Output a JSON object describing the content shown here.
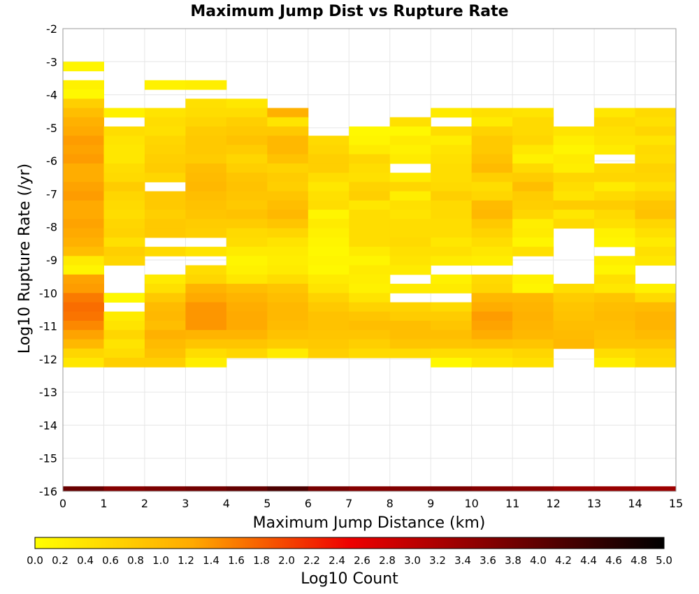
{
  "chart_data": {
    "type": "heatmap",
    "title": "Maximum Jump Dist vs Rupture Rate",
    "xlabel": "Maximum Jump Distance (km)",
    "ylabel": "Log10 Rupture Rate (/yr)",
    "colorbar_label": "Log10 Count",
    "xlim": [
      0,
      15
    ],
    "ylim": [
      -16,
      -2
    ],
    "x_ticks": [
      0,
      1,
      2,
      3,
      4,
      5,
      6,
      7,
      8,
      9,
      10,
      11,
      12,
      13,
      14,
      15
    ],
    "y_ticks": [
      -2,
      -3,
      -4,
      -5,
      -6,
      -7,
      -8,
      -9,
      -10,
      -11,
      -12,
      -13,
      -14,
      -15,
      -16
    ],
    "color_scale": {
      "min": 0.0,
      "max": 5.0,
      "ticks": [
        "0.0",
        "0.2",
        "0.4",
        "0.6",
        "0.8",
        "1.0",
        "1.2",
        "1.4",
        "1.6",
        "1.8",
        "2.0",
        "2.2",
        "2.4",
        "2.6",
        "2.8",
        "3.0",
        "3.2",
        "3.4",
        "3.6",
        "3.8",
        "4.0",
        "4.2",
        "4.4",
        "4.6",
        "4.8",
        "5.0"
      ],
      "stops": [
        {
          "v": 0.0,
          "color": "#ffff00"
        },
        {
          "v": 1.25,
          "color": "#ffaa00"
        },
        {
          "v": 2.5,
          "color": "#ee0000"
        },
        {
          "v": 3.75,
          "color": "#770000"
        },
        {
          "v": 5.0,
          "color": "#000000"
        }
      ]
    },
    "bin_width_x": 1,
    "bin_height_y": 0.28,
    "y_bins_from": -12.4,
    "y_bins_to": -3.0,
    "columns": [
      {
        "x_start": 0,
        "values": [
          0.15,
          null,
          0.2,
          0.1,
          0.7,
          0.95,
          1.15,
          1.25,
          1.35,
          1.3,
          1.35,
          1.2,
          1.2,
          1.3,
          1.35,
          1.25,
          1.25,
          1.3,
          1.25,
          1.15,
          0.95,
          0.3,
          0.15,
          1.3,
          1.35,
          1.6,
          1.7,
          1.65,
          1.5,
          1.3,
          1.05,
          0.6,
          0.35
        ]
      },
      {
        "x_start": 1,
        "values": [
          null,
          null,
          null,
          null,
          null,
          0.2,
          null,
          0.5,
          0.4,
          0.35,
          0.35,
          0.5,
          0.55,
          0.75,
          0.6,
          0.55,
          0.5,
          0.6,
          0.65,
          0.45,
          0.7,
          0.6,
          null,
          null,
          null,
          0.1,
          null,
          0.3,
          0.4,
          0.6,
          0.4,
          0.5,
          0.7
        ]
      },
      {
        "x_start": 2,
        "values": [
          null,
          null,
          0.2,
          null,
          null,
          0.4,
          0.5,
          0.45,
          0.6,
          0.65,
          0.7,
          0.75,
          0.6,
          null,
          0.8,
          0.8,
          0.7,
          0.8,
          0.8,
          null,
          0.55,
          null,
          null,
          0.3,
          0.45,
          0.8,
          1.0,
          1.05,
          0.95,
          1.15,
          1.0,
          0.9,
          0.7
        ]
      },
      {
        "x_start": 3,
        "values": [
          null,
          null,
          0.25,
          null,
          0.45,
          0.5,
          0.6,
          0.75,
          0.8,
          0.8,
          0.75,
          0.95,
          1.0,
          1.05,
          0.95,
          0.9,
          0.85,
          0.75,
          0.7,
          null,
          0.4,
          null,
          0.5,
          0.6,
          1.1,
          1.25,
          1.4,
          1.4,
          1.4,
          1.1,
          0.85,
          0.5,
          0.25
        ]
      },
      {
        "x_start": 4,
        "values": [
          null,
          null,
          null,
          null,
          0.35,
          0.5,
          0.7,
          0.8,
          0.9,
          0.75,
          0.6,
          0.7,
          0.85,
          0.9,
          0.85,
          0.8,
          0.9,
          0.75,
          0.55,
          0.5,
          0.3,
          0.15,
          0.2,
          0.35,
          0.95,
          1.1,
          1.2,
          1.25,
          1.25,
          1.1,
          0.85,
          0.6,
          null
        ]
      },
      {
        "x_start": 5,
        "values": [
          null,
          null,
          null,
          null,
          null,
          1.15,
          0.4,
          0.8,
          1.05,
          1.05,
          0.9,
          0.65,
          0.75,
          0.7,
          0.85,
          0.95,
          1.05,
          0.85,
          0.6,
          0.4,
          0.3,
          0.25,
          0.3,
          0.5,
          0.85,
          0.95,
          1.05,
          1.05,
          1.0,
          0.9,
          0.75,
          0.3,
          null
        ]
      },
      {
        "x_start": 6,
        "values": [
          null,
          null,
          null,
          null,
          null,
          null,
          null,
          null,
          0.55,
          0.6,
          0.7,
          0.7,
          0.5,
          0.35,
          0.45,
          0.5,
          0.15,
          0.3,
          0.2,
          0.15,
          0.1,
          0.15,
          0.1,
          0.3,
          0.4,
          0.65,
          0.8,
          0.9,
          0.9,
          0.85,
          0.8,
          0.7,
          null
        ]
      },
      {
        "x_start": 7,
        "values": [
          null,
          null,
          null,
          null,
          null,
          null,
          null,
          0.1,
          0.15,
          0.3,
          0.6,
          0.5,
          0.45,
          0.65,
          0.7,
          0.35,
          0.5,
          0.5,
          0.5,
          0.5,
          0.3,
          0.15,
          0.3,
          0.25,
          0.2,
          0.4,
          0.65,
          0.85,
          0.95,
          0.85,
          0.7,
          0.55,
          null
        ]
      },
      {
        "x_start": 8,
        "values": [
          null,
          null,
          null,
          null,
          null,
          null,
          0.45,
          0.1,
          0.3,
          0.2,
          0.3,
          null,
          0.3,
          0.6,
          0.25,
          0.45,
          0.4,
          0.5,
          0.5,
          0.55,
          0.45,
          0.4,
          0.3,
          null,
          0.3,
          null,
          0.65,
          0.75,
          0.95,
          0.95,
          0.85,
          0.55,
          null
        ]
      },
      {
        "x_start": 9,
        "values": [
          null,
          null,
          null,
          null,
          null,
          0.3,
          null,
          0.5,
          0.25,
          0.4,
          0.45,
          0.5,
          0.5,
          0.55,
          0.7,
          0.55,
          0.55,
          0.5,
          0.5,
          0.35,
          0.45,
          0.3,
          null,
          0.2,
          0.3,
          null,
          0.55,
          0.75,
          0.85,
          0.95,
          0.85,
          0.5,
          0.1
        ]
      },
      {
        "x_start": 10,
        "values": [
          null,
          null,
          null,
          null,
          null,
          0.45,
          0.3,
          0.65,
          0.8,
          0.8,
          0.9,
          1.0,
          0.7,
          0.5,
          0.6,
          1.0,
          1.05,
          0.8,
          0.65,
          0.5,
          0.35,
          0.25,
          null,
          0.55,
          0.6,
          1.05,
          1.2,
          1.35,
          1.3,
          1.2,
          0.9,
          0.5,
          0.35
        ]
      },
      {
        "x_start": 11,
        "values": [
          null,
          null,
          null,
          null,
          null,
          0.4,
          0.55,
          0.55,
          0.6,
          0.35,
          0.2,
          0.55,
          0.75,
          0.95,
          0.75,
          0.7,
          0.6,
          0.25,
          0.3,
          0.15,
          0.45,
          null,
          null,
          0.2,
          0.15,
          1.05,
          1.1,
          1.15,
          1.1,
          1.05,
          0.85,
          0.6,
          0.45
        ]
      },
      {
        "x_start": 12,
        "values": [
          null,
          null,
          null,
          null,
          null,
          null,
          null,
          0.4,
          0.25,
          0.15,
          0.3,
          0.25,
          0.6,
          0.5,
          0.4,
          0.75,
          0.35,
          0.55,
          null,
          null,
          null,
          null,
          null,
          null,
          0.5,
          0.75,
          0.85,
          0.9,
          0.95,
          1.0,
          1.05,
          null,
          null
        ]
      },
      {
        "x_start": 13,
        "values": [
          null,
          null,
          null,
          null,
          null,
          0.35,
          0.55,
          0.45,
          0.4,
          0.3,
          null,
          0.55,
          0.6,
          0.3,
          0.55,
          0.75,
          0.55,
          0.45,
          0.2,
          0.15,
          null,
          0.25,
          0.15,
          0.45,
          0.35,
          0.85,
          0.95,
          1.0,
          0.95,
          0.9,
          0.85,
          0.5,
          0.25
        ]
      },
      {
        "x_start": 14,
        "values": [
          null,
          null,
          null,
          null,
          null,
          0.55,
          0.45,
          0.6,
          0.4,
          0.55,
          0.5,
          0.65,
          0.6,
          0.45,
          0.65,
          0.85,
          0.9,
          0.6,
          0.45,
          0.3,
          0.45,
          0.35,
          null,
          null,
          0.2,
          0.55,
          1.0,
          1.1,
          1.1,
          1.0,
          0.85,
          0.6,
          0.55
        ]
      }
    ],
    "floor_row": {
      "y_from": -16.0,
      "y_to": -15.85,
      "values": [
        3.9,
        3.6,
        3.7,
        3.8,
        3.95,
        4.2,
        3.75,
        3.6,
        3.65,
        3.7,
        3.6,
        3.55,
        3.4,
        3.4,
        3.35
      ]
    }
  }
}
